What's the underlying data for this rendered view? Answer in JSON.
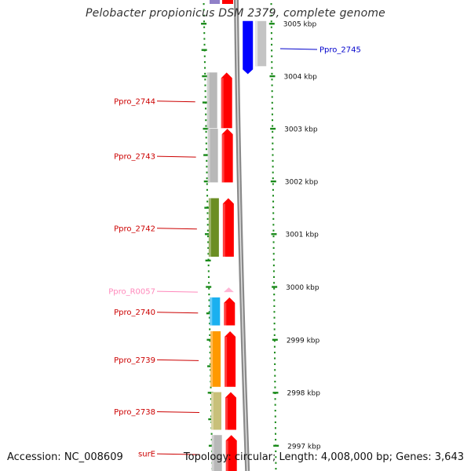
{
  "title": "Pelobacter propionicus DSM 2379, complete genome",
  "footer": {
    "accession": "Accession: NC_008609",
    "topology": "Topology: circular; Length: 4,008,000 bp; Genes: 3,643"
  },
  "colors": {
    "backbone": "#8a8a8a",
    "tick": "#1a8a1a",
    "strand_arrow": "#ff0000",
    "rna": "#ff9acb",
    "label_default": "#cc0000",
    "label_highlight": "#0000cc",
    "label_rna": "#ff88bb"
  },
  "scale_labels": [
    {
      "kbp": 3005,
      "text": "3005 kbp"
    },
    {
      "kbp": 3004,
      "text": "3004 kbp"
    },
    {
      "kbp": 3003,
      "text": "3003 kbp"
    },
    {
      "kbp": 3002,
      "text": "3002 kbp"
    },
    {
      "kbp": 3001,
      "text": "3001 kbp"
    },
    {
      "kbp": 3000,
      "text": "3000 kbp"
    },
    {
      "kbp": 2999,
      "text": "2999 kbp"
    },
    {
      "kbp": 2998,
      "text": "2998 kbp"
    },
    {
      "kbp": 2997,
      "text": "2997 kbp"
    }
  ],
  "genes": [
    {
      "id": "Ppro_2745",
      "label": "Ppro_2745",
      "strand": "right",
      "start_kbp": 3004.04,
      "end_kbp": 3005.05,
      "color": "#0000ff",
      "label_color": "#0000cc"
    },
    {
      "id": "Ppro_2744",
      "label": "Ppro_2744",
      "strand": "left",
      "start_kbp": 3003.01,
      "end_kbp": 3004.07,
      "color": "#b8b8b8",
      "label_color": "#cc0000"
    },
    {
      "id": "Ppro_2743",
      "label": "Ppro_2743",
      "strand": "left",
      "start_kbp": 3001.98,
      "end_kbp": 3003.0,
      "color": "#b8b8b8",
      "label_color": "#cc0000"
    },
    {
      "id": "Ppro_2742",
      "label": "Ppro_2742",
      "strand": "left",
      "start_kbp": 3000.57,
      "end_kbp": 3001.68,
      "color": "#6b8e23",
      "label_color": "#cc0000"
    },
    {
      "id": "Ppro_R0057",
      "label": "Ppro_R0057",
      "strand": "left",
      "start_kbp": 2999.9,
      "end_kbp": 2999.99,
      "color": "#ffb6d5",
      "label_color": "#ff88bb",
      "rna": true
    },
    {
      "id": "Ppro_2740",
      "label": "Ppro_2740",
      "strand": "left",
      "start_kbp": 2999.27,
      "end_kbp": 2999.8,
      "color": "#1ab0f0",
      "label_color": "#cc0000"
    },
    {
      "id": "Ppro_2739",
      "label": "Ppro_2739",
      "strand": "left",
      "start_kbp": 2998.11,
      "end_kbp": 2999.16,
      "color": "#ff9900",
      "label_color": "#cc0000"
    },
    {
      "id": "Ppro_2738",
      "label": "Ppro_2738",
      "strand": "left",
      "start_kbp": 2997.3,
      "end_kbp": 2998.01,
      "color": "#c8c07a",
      "label_color": "#cc0000"
    },
    {
      "id": "surE",
      "label": "surE",
      "strand": "left",
      "start_kbp": 2996.45,
      "end_kbp": 2997.2,
      "color": "#b8b8b8",
      "label_color": "#cc0000"
    }
  ]
}
